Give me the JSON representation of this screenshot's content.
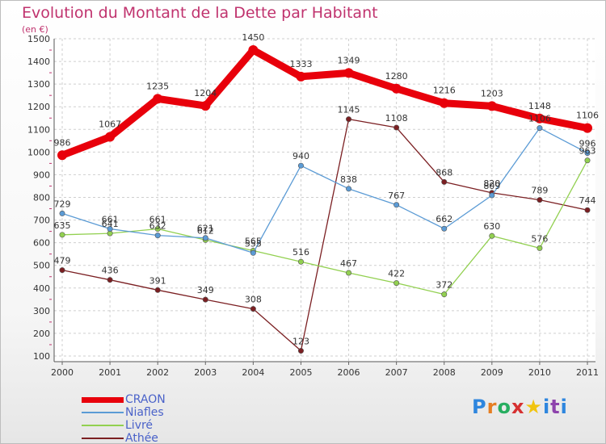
{
  "title": "Evolution du Montant de la Dette par Habitant",
  "subtitle": "(en €)",
  "logo_text": "Prox★iti",
  "chart_data": {
    "type": "line",
    "x": [
      "2000",
      "2001",
      "2002",
      "2003",
      "2004",
      "2005",
      "2006",
      "2007",
      "2008",
      "2009",
      "2010",
      "2011"
    ],
    "ylim": [
      100,
      1500
    ],
    "yticks": [
      100,
      200,
      300,
      400,
      500,
      600,
      700,
      800,
      900,
      1000,
      1100,
      1200,
      1300,
      1400,
      1500
    ],
    "grid": true,
    "legend_position": "bottom-left",
    "series": [
      {
        "name": "CRAON",
        "color": "#e8000b",
        "values": [
          986,
          1067,
          1235,
          1204,
          1450,
          1333,
          1349,
          1280,
          1216,
          1203,
          1148,
          1106
        ]
      },
      {
        "name": "Niafles",
        "color": "#5b9bd5",
        "values": [
          729,
          661,
          632,
          621,
          555,
          940,
          838,
          767,
          662,
          809,
          1106,
          996
        ]
      },
      {
        "name": "Livré",
        "color": "#92d050",
        "values": [
          635,
          641,
          661,
          612,
          565,
          516,
          467,
          422,
          372,
          630,
          576,
          963
        ]
      },
      {
        "name": "Athée",
        "color": "#7b1f22",
        "values": [
          479,
          436,
          391,
          349,
          308,
          123,
          1145,
          1108,
          868,
          820,
          789,
          744
        ]
      }
    ],
    "data_labels": [
      [
        "986",
        "1067",
        "1235",
        "1204",
        "1450",
        "1333",
        "1349",
        "1280",
        "1216",
        "1203",
        "1148",
        "1106"
      ],
      [
        "729",
        "661",
        "632",
        "621",
        "555",
        "940",
        "838",
        "767",
        "662",
        "809",
        "1106",
        "996"
      ],
      [
        "635",
        "641",
        "661",
        "612",
        "565",
        "516",
        "467",
        "422",
        "372",
        "630",
        "576",
        "963"
      ],
      [
        "479",
        "436",
        "391",
        "349",
        "308",
        "123",
        "1145",
        "1108",
        "868",
        "820",
        "789",
        "744"
      ]
    ]
  }
}
